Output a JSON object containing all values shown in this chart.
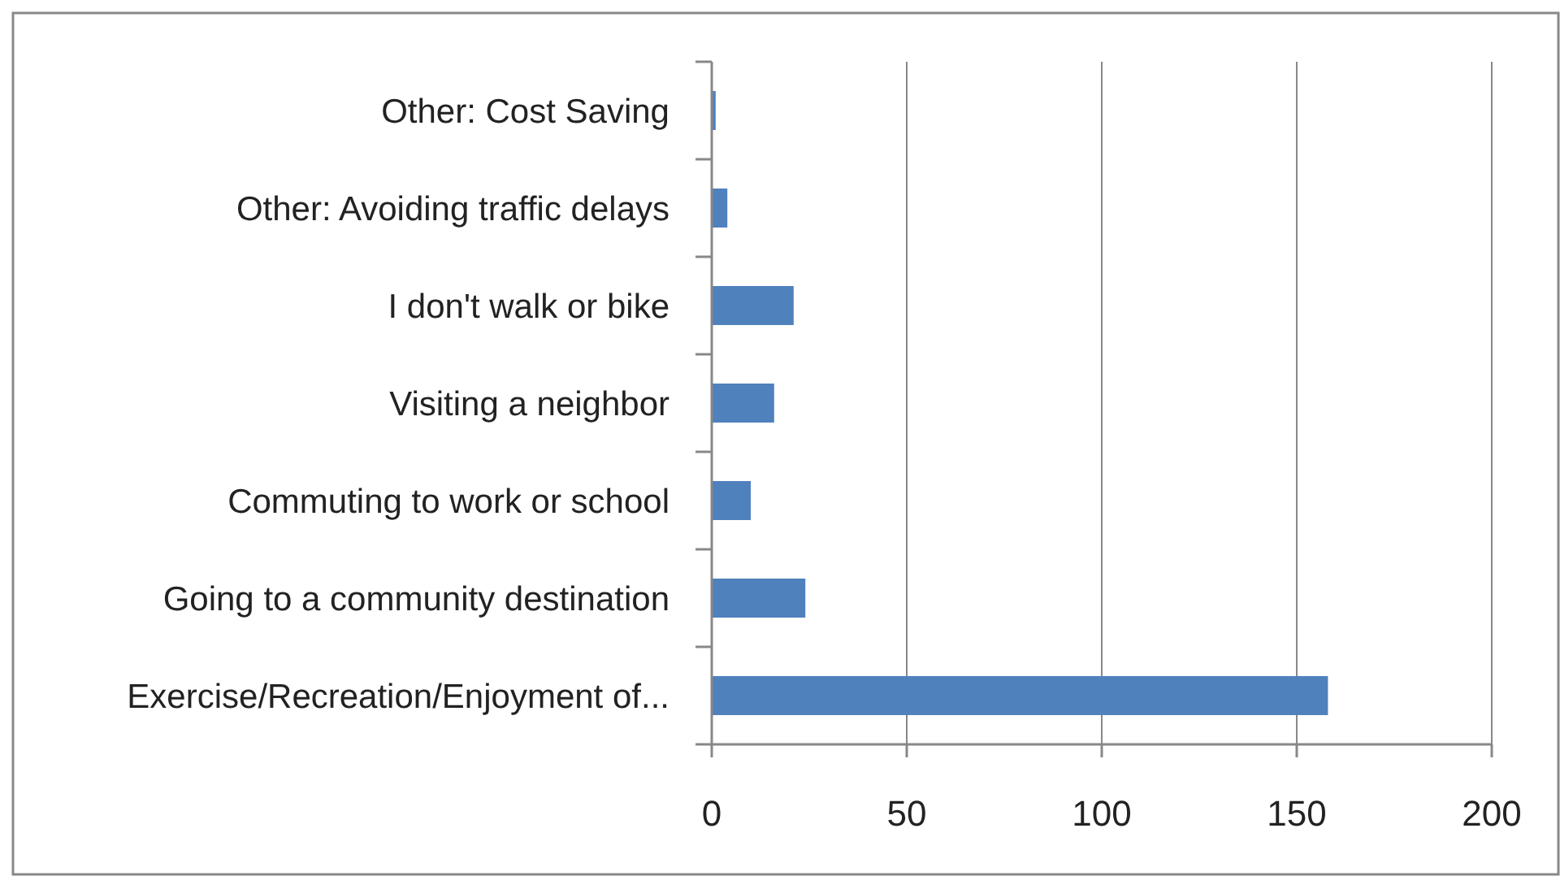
{
  "chart_data": {
    "type": "bar",
    "orientation": "horizontal",
    "categories": [
      "Other: Cost Saving",
      "Other: Avoiding traffic delays",
      "I don't walk or bike",
      "Visiting a neighbor",
      "Commuting to work or school",
      "Going to a community destination",
      "Exercise/Recreation/Enjoyment of..."
    ],
    "values": [
      1,
      4,
      21,
      16,
      10,
      24,
      158
    ],
    "color": "#4f81bd",
    "xlim": [
      0,
      200
    ],
    "xticks": [
      0,
      50,
      100,
      150,
      200
    ],
    "grid": "x"
  }
}
